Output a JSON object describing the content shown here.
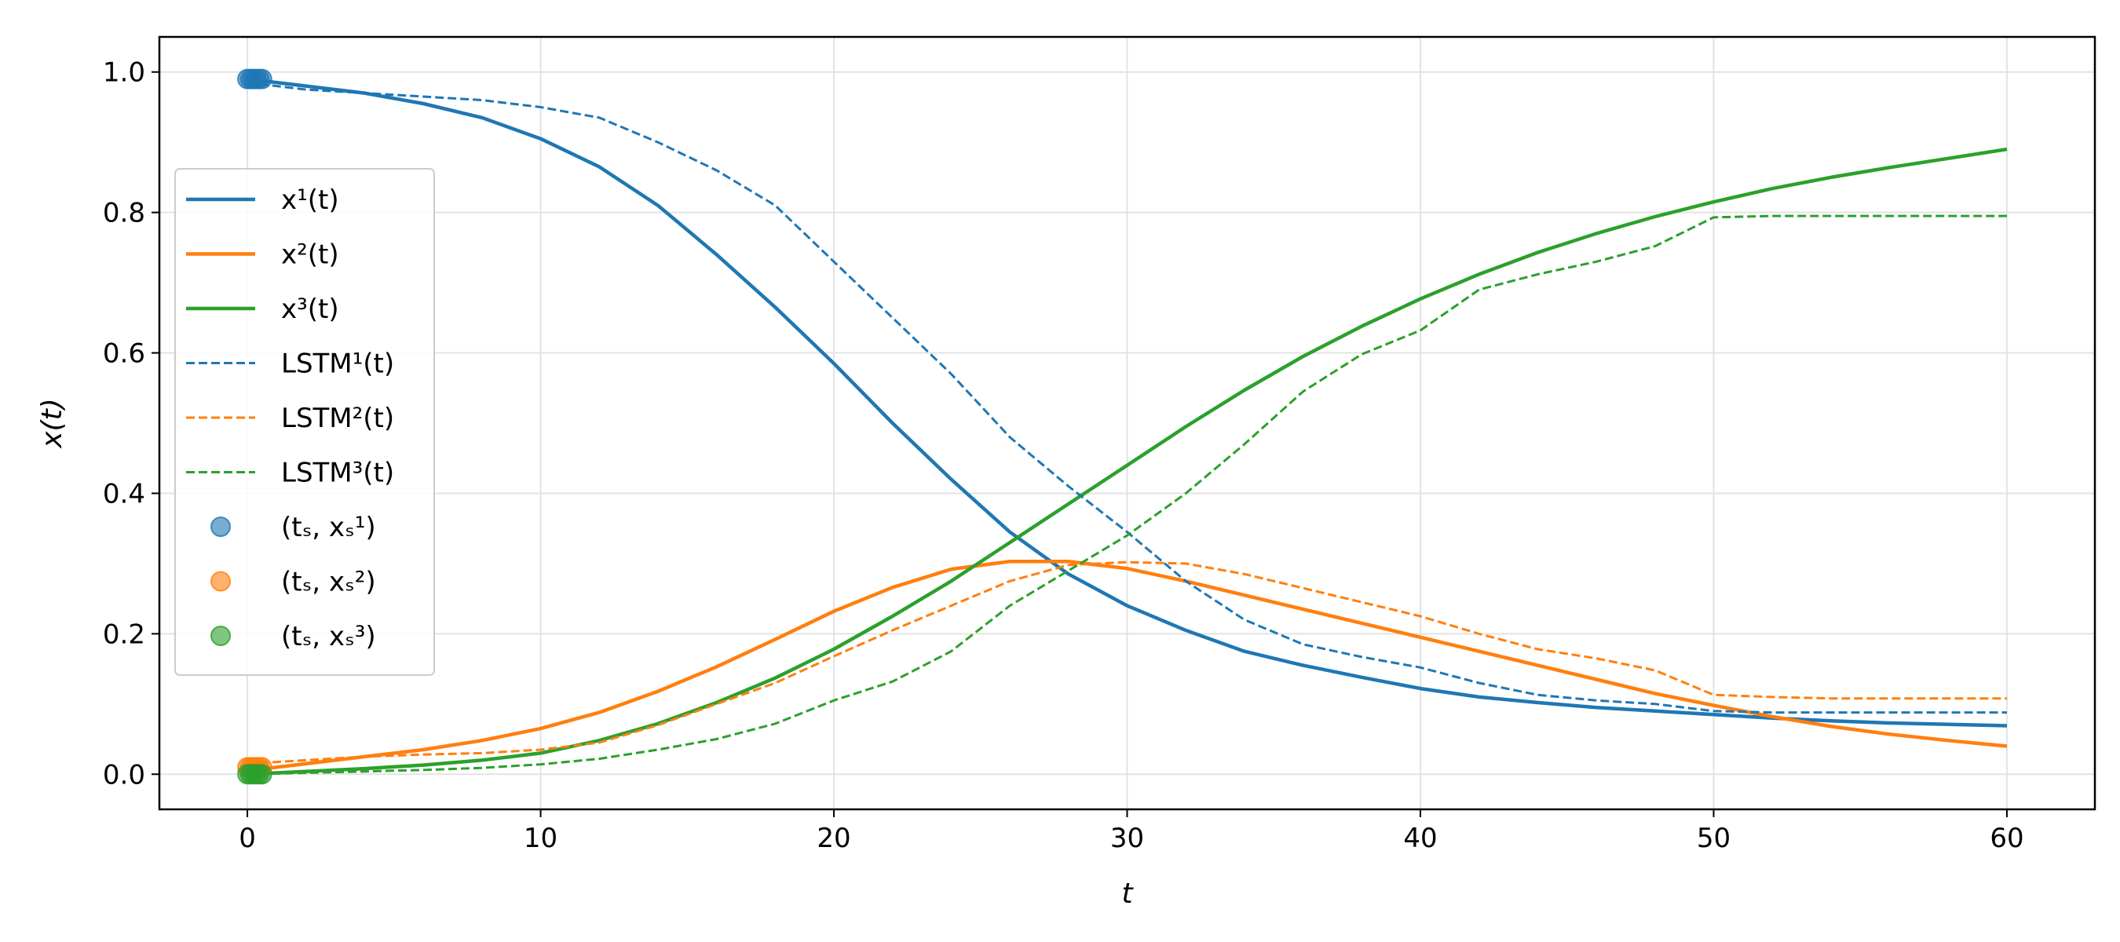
{
  "chart_data": {
    "type": "line",
    "title": "",
    "xlabel": "t",
    "ylabel": "x(t)",
    "xlim": [
      -3,
      63
    ],
    "ylim": [
      -0.05,
      1.05
    ],
    "xticks": [
      "0",
      "10",
      "20",
      "30",
      "40",
      "50",
      "60"
    ],
    "yticks": [
      "0.0",
      "0.2",
      "0.4",
      "0.6",
      "0.8",
      "1.0"
    ],
    "grid": true,
    "legend_position": "center-left",
    "colors": {
      "s1": "#1f77b4",
      "s2": "#ff7f0e",
      "s3": "#2ca02c"
    },
    "series": [
      {
        "name": "x¹(t)",
        "style": "solid",
        "color": "#1f77b4",
        "x": [
          0,
          2,
          4,
          6,
          8,
          10,
          12,
          14,
          16,
          18,
          20,
          22,
          24,
          26,
          28,
          30,
          32,
          34,
          36,
          38,
          40,
          42,
          44,
          46,
          48,
          50,
          52,
          54,
          56,
          58,
          60
        ],
        "y": [
          0.99,
          0.98,
          0.97,
          0.955,
          0.935,
          0.905,
          0.865,
          0.81,
          0.74,
          0.665,
          0.585,
          0.5,
          0.42,
          0.345,
          0.285,
          0.24,
          0.205,
          0.175,
          0.155,
          0.138,
          0.122,
          0.11,
          0.102,
          0.095,
          0.09,
          0.085,
          0.08,
          0.076,
          0.073,
          0.071,
          0.069
        ]
      },
      {
        "name": "x²(t)",
        "style": "solid",
        "color": "#ff7f0e",
        "x": [
          0,
          2,
          4,
          6,
          8,
          10,
          12,
          14,
          16,
          18,
          20,
          22,
          24,
          26,
          28,
          30,
          32,
          34,
          36,
          38,
          40,
          42,
          44,
          46,
          48,
          50,
          52,
          54,
          56,
          58,
          60
        ],
        "y": [
          0.005,
          0.015,
          0.025,
          0.035,
          0.048,
          0.065,
          0.088,
          0.118,
          0.153,
          0.192,
          0.232,
          0.266,
          0.292,
          0.303,
          0.303,
          0.293,
          0.275,
          0.255,
          0.235,
          0.215,
          0.195,
          0.175,
          0.155,
          0.135,
          0.115,
          0.098,
          0.082,
          0.068,
          0.057,
          0.048,
          0.04
        ]
      },
      {
        "name": "x³(t)",
        "style": "solid",
        "color": "#2ca02c",
        "x": [
          0,
          2,
          4,
          6,
          8,
          10,
          12,
          14,
          16,
          18,
          20,
          22,
          24,
          26,
          28,
          30,
          32,
          34,
          36,
          38,
          40,
          42,
          44,
          46,
          48,
          50,
          52,
          54,
          56,
          58,
          60
        ],
        "y": [
          0.0,
          0.004,
          0.008,
          0.013,
          0.02,
          0.03,
          0.048,
          0.072,
          0.102,
          0.137,
          0.178,
          0.225,
          0.275,
          0.33,
          0.385,
          0.44,
          0.495,
          0.547,
          0.595,
          0.638,
          0.677,
          0.712,
          0.743,
          0.77,
          0.794,
          0.815,
          0.834,
          0.85,
          0.864,
          0.877,
          0.89
        ]
      },
      {
        "name": "LSTM¹(t)",
        "style": "dashed",
        "color": "#1f77b4",
        "x": [
          0,
          2,
          4,
          6,
          8,
          10,
          12,
          14,
          16,
          18,
          20,
          22,
          24,
          26,
          28,
          30,
          32,
          34,
          36,
          38,
          40,
          42,
          44,
          46,
          48,
          50,
          52,
          54,
          56,
          58,
          60
        ],
        "y": [
          0.985,
          0.975,
          0.97,
          0.965,
          0.96,
          0.95,
          0.935,
          0.9,
          0.86,
          0.81,
          0.73,
          0.65,
          0.57,
          0.48,
          0.41,
          0.345,
          0.275,
          0.22,
          0.185,
          0.167,
          0.152,
          0.13,
          0.113,
          0.105,
          0.1,
          0.09,
          0.088,
          0.088,
          0.088,
          0.088,
          0.088
        ]
      },
      {
        "name": "LSTM²(t)",
        "style": "dashed",
        "color": "#ff7f0e",
        "x": [
          0,
          2,
          4,
          6,
          8,
          10,
          12,
          14,
          16,
          18,
          20,
          22,
          24,
          26,
          28,
          30,
          32,
          34,
          36,
          38,
          40,
          42,
          44,
          46,
          48,
          50,
          52,
          54,
          56,
          58,
          60
        ],
        "y": [
          0.015,
          0.02,
          0.025,
          0.028,
          0.03,
          0.035,
          0.045,
          0.07,
          0.1,
          0.13,
          0.168,
          0.205,
          0.24,
          0.275,
          0.298,
          0.302,
          0.3,
          0.285,
          0.265,
          0.245,
          0.225,
          0.2,
          0.178,
          0.165,
          0.148,
          0.113,
          0.11,
          0.108,
          0.108,
          0.108,
          0.108
        ]
      },
      {
        "name": "LSTM³(t)",
        "style": "dashed",
        "color": "#2ca02c",
        "x": [
          0,
          2,
          4,
          6,
          8,
          10,
          12,
          14,
          16,
          18,
          20,
          22,
          24,
          26,
          28,
          30,
          32,
          34,
          36,
          38,
          40,
          42,
          44,
          46,
          48,
          50,
          52,
          54,
          56,
          58,
          60
        ],
        "y": [
          0.0,
          0.002,
          0.004,
          0.006,
          0.009,
          0.014,
          0.022,
          0.035,
          0.05,
          0.072,
          0.105,
          0.132,
          0.175,
          0.24,
          0.29,
          0.34,
          0.4,
          0.47,
          0.545,
          0.598,
          0.632,
          0.69,
          0.712,
          0.73,
          0.752,
          0.793,
          0.795,
          0.795,
          0.795,
          0.795,
          0.795
        ]
      },
      {
        "name": "(tₛ, xₛ¹)",
        "style": "scatter",
        "color": "#1f77b4",
        "x": [
          0.0,
          0.1,
          0.2,
          0.3,
          0.4,
          0.5
        ],
        "y": [
          0.99,
          0.99,
          0.99,
          0.99,
          0.99,
          0.99
        ]
      },
      {
        "name": "(tₛ, xₛ²)",
        "style": "scatter",
        "color": "#ff7f0e",
        "x": [
          0.0,
          0.1,
          0.2,
          0.3,
          0.4,
          0.5
        ],
        "y": [
          0.01,
          0.01,
          0.01,
          0.01,
          0.01,
          0.01
        ]
      },
      {
        "name": "(tₛ, xₛ³)",
        "style": "scatter",
        "color": "#2ca02c",
        "x": [
          0.0,
          0.1,
          0.2,
          0.3,
          0.4,
          0.5
        ],
        "y": [
          0.0,
          0.0,
          0.0,
          0.0,
          0.0,
          0.0
        ]
      }
    ]
  }
}
